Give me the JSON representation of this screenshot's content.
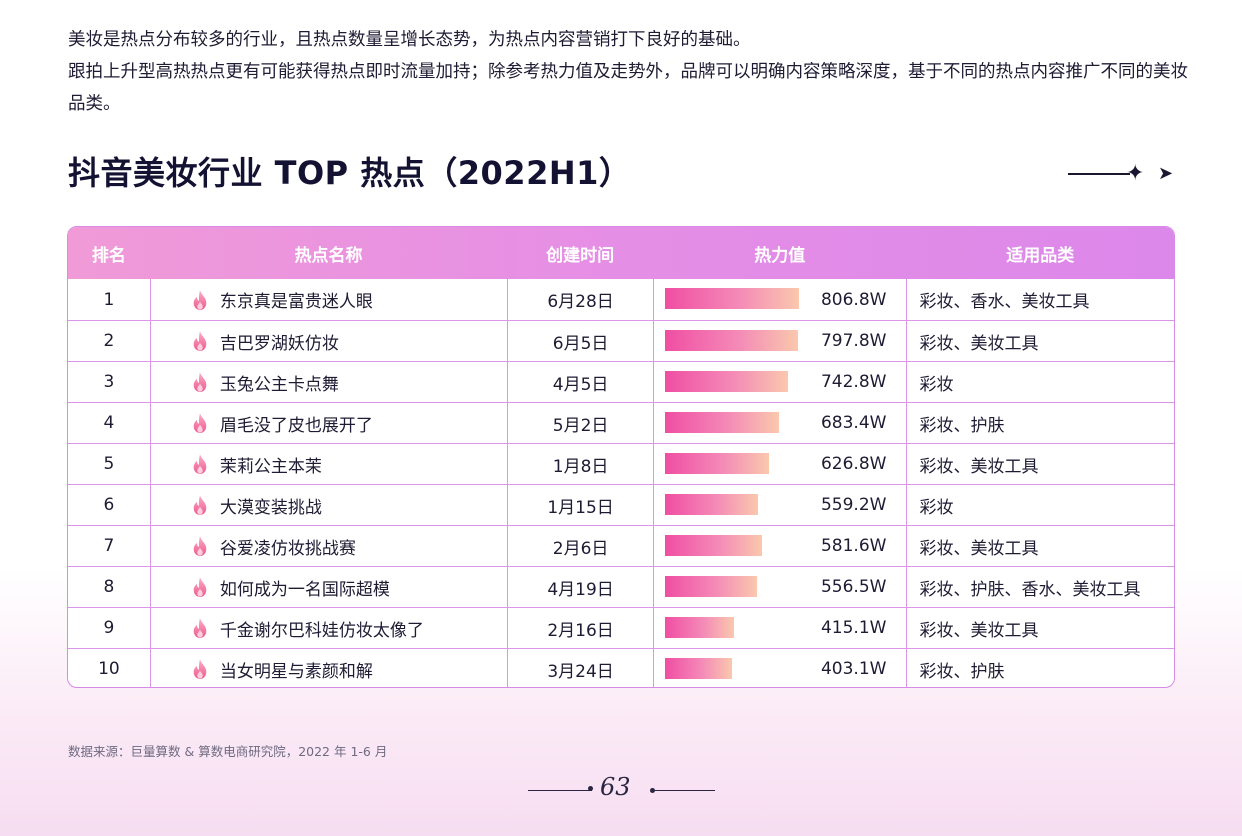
{
  "intro": {
    "line1": "美妆是热点分布较多的行业，且热点数量呈增长态势，为热点内容营销打下良好的基础。",
    "line2": "跟拍上升型高热热点更有可能获得热点即时流量加持；除参考热力值及走势外，品牌可以明确内容策略深度，基于不同的热点内容推广不同的美妆品类。"
  },
  "title": "抖音美妆行业 TOP 热点（2022H1）",
  "table": {
    "headers": [
      "排名",
      "热点名称",
      "创建时间",
      "热力值",
      "适用品类"
    ],
    "rows": [
      {
        "rank": "1",
        "name": "东京真是富贵迷人眼",
        "date": "6月28日",
        "heat": "806.8W",
        "heat_value": 806.8,
        "category": "彩妆、香水、美妆工具"
      },
      {
        "rank": "2",
        "name": "吉巴罗湖妖仿妆",
        "date": "6月5日",
        "heat": "797.8W",
        "heat_value": 797.8,
        "category": "彩妆、美妆工具"
      },
      {
        "rank": "3",
        "name": "玉兔公主卡点舞",
        "date": "4月5日",
        "heat": "742.8W",
        "heat_value": 742.8,
        "category": "彩妆"
      },
      {
        "rank": "4",
        "name": "眉毛没了皮也展开了",
        "date": "5月2日",
        "heat": "683.4W",
        "heat_value": 683.4,
        "category": "彩妆、护肤"
      },
      {
        "rank": "5",
        "name": "茉莉公主本茉",
        "date": "1月8日",
        "heat": "626.8W",
        "heat_value": 626.8,
        "category": "彩妆、美妆工具"
      },
      {
        "rank": "6",
        "name": "大漠变装挑战",
        "date": "1月15日",
        "heat": "559.2W",
        "heat_value": 559.2,
        "category": "彩妆"
      },
      {
        "rank": "7",
        "name": "谷爱凌仿妆挑战赛",
        "date": "2月6日",
        "heat": "581.6W",
        "heat_value": 581.6,
        "category": "彩妆、美妆工具"
      },
      {
        "rank": "8",
        "name": "如何成为一名国际超模",
        "date": "4月19日",
        "heat": "556.5W",
        "heat_value": 556.5,
        "category": "彩妆、护肤、香水、美妆工具"
      },
      {
        "rank": "9",
        "name": "千金谢尔巴科娃仿妆太像了",
        "date": "2月16日",
        "heat": "415.1W",
        "heat_value": 415.1,
        "category": "彩妆、美妆工具"
      },
      {
        "rank": "10",
        "name": "当女明星与素颜和解",
        "date": "3月24日",
        "heat": "403.1W",
        "heat_value": 403.1,
        "category": "彩妆、护肤"
      }
    ]
  },
  "source": "数据来源：巨量算数 & 算数电商研究院，2022 年 1-6 月",
  "page_number": "63",
  "icons": {
    "row_icon": "flame-icon",
    "title_deco": "sparkle-arrow-icon"
  },
  "colors": {
    "accent": "#e58ee6",
    "bar_start": "#f04ea3",
    "bar_end": "#fac8ad",
    "title": "#141233"
  }
}
